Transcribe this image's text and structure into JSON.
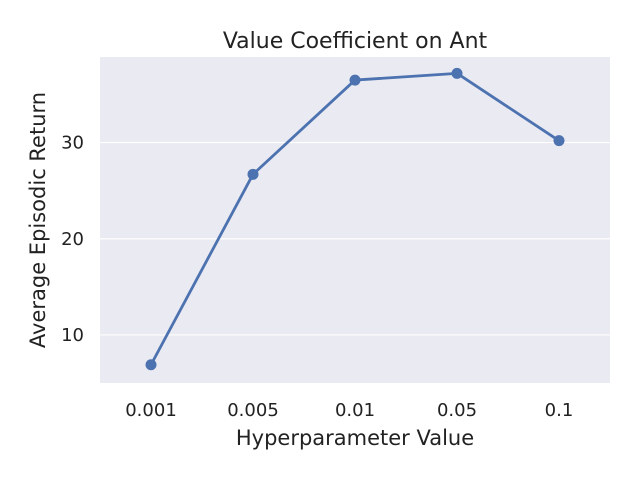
{
  "chart_data": {
    "type": "line",
    "title": "Value Coefficient on Ant",
    "xlabel": "Hyperparameter Value",
    "ylabel": "Average Episodic Return",
    "categories": [
      "0.001",
      "0.005",
      "0.01",
      "0.05",
      "0.1"
    ],
    "series": [
      {
        "values": [
          6.9,
          26.7,
          36.5,
          37.2,
          30.2
        ]
      }
    ],
    "ylim": [
      5.0,
      38.9
    ],
    "yticks": [
      10,
      20,
      30
    ],
    "grid": true,
    "colors": {
      "line": "#4c72b0",
      "background": "#eaeaf2",
      "grid": "#ffffff"
    }
  }
}
